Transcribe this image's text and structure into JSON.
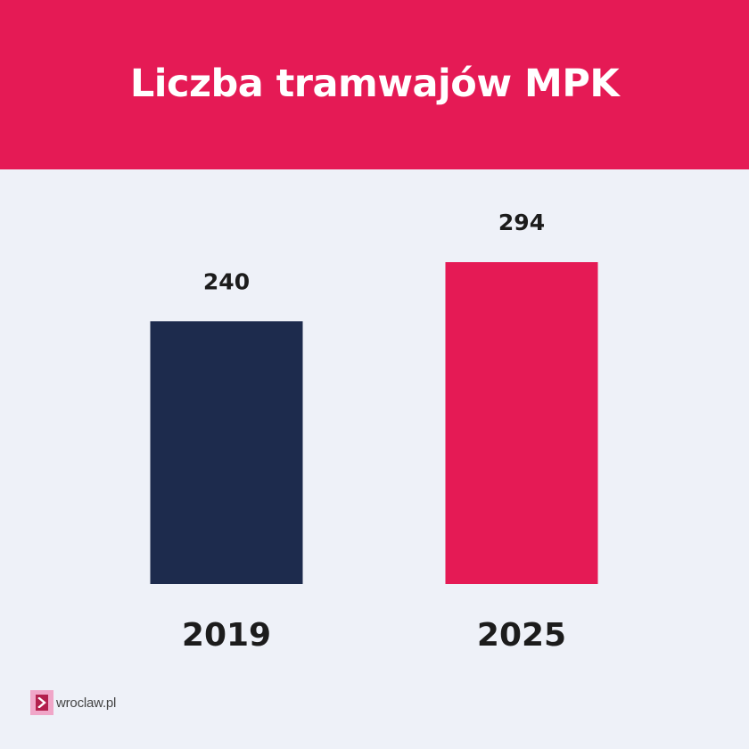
{
  "header": {
    "title": "Liczba tramwajów MPK"
  },
  "colors": {
    "background": "#eef1f8",
    "header_background": "#e51a55",
    "bar_2019": "#1d2b4d",
    "bar_2025": "#e51a55",
    "text": "#1c1c1c"
  },
  "chart_data": {
    "type": "bar",
    "title": "Liczba tramwajów MPK",
    "categories": [
      "2019",
      "2025"
    ],
    "values": [
      240,
      294
    ],
    "value_labels": [
      "240",
      "294"
    ],
    "bar_colors": [
      "#1d2b4d",
      "#e51a55"
    ],
    "xlabel": "",
    "ylabel": "",
    "ylim": [
      0,
      294
    ],
    "grid": false,
    "legend": "none"
  },
  "branding": {
    "text": "wroclaw.pl",
    "icon": "chevron-right-icon"
  }
}
